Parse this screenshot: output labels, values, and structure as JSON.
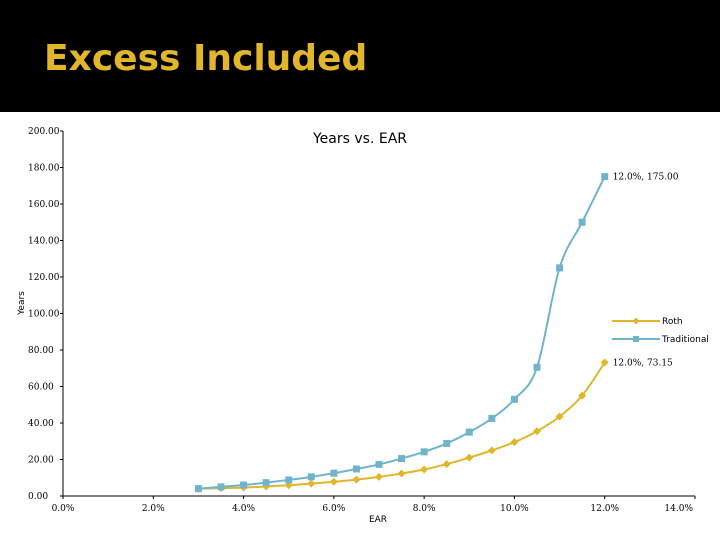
{
  "slide": {
    "title": "Excess Included"
  },
  "colors": {
    "roth": "#e2b62b",
    "traditional": "#6fb4cc",
    "title": "#e2b62b",
    "band": "#000000"
  },
  "chart_data": {
    "type": "line",
    "title": "Years vs. EAR",
    "xlabel": "EAR",
    "ylabel": "Years",
    "xlim": [
      0,
      14
    ],
    "ylim": [
      0,
      200
    ],
    "x_ticks": [
      "0.0%",
      "2.0%",
      "4.0%",
      "6.0%",
      "8.0%",
      "10.0%",
      "12.0%",
      "14.0%"
    ],
    "y_ticks": [
      "0.00",
      "20.00",
      "40.00",
      "60.00",
      "80.00",
      "100.00",
      "120.00",
      "140.00",
      "160.00",
      "180.00",
      "200.00"
    ],
    "grid": false,
    "legend": "right",
    "x": [
      3.0,
      3.5,
      4.0,
      4.5,
      5.0,
      5.5,
      6.0,
      6.5,
      7.0,
      7.5,
      8.0,
      8.5,
      9.0,
      9.5,
      10.0,
      10.5,
      11.0,
      11.5,
      12.0
    ],
    "series": [
      {
        "name": "Roth",
        "marker": "diamond",
        "values": [
          4.0,
          4.3,
          4.6,
          5.2,
          5.9,
          6.8,
          7.8,
          9.0,
          10.5,
          12.3,
          14.5,
          17.5,
          21.0,
          25.0,
          29.5,
          35.5,
          43.5,
          55.0,
          73.15
        ]
      },
      {
        "name": "Traditional",
        "marker": "square",
        "values": [
          4.0,
          5.0,
          6.0,
          7.3,
          8.8,
          10.5,
          12.5,
          14.8,
          17.3,
          20.5,
          24.2,
          28.8,
          35.0,
          42.5,
          53.0,
          70.5,
          125.0,
          150.0,
          175.0
        ]
      }
    ],
    "annotations": [
      {
        "series": "Traditional",
        "text": "12.0%, 175.00"
      },
      {
        "series": "Roth",
        "text": "12.0%, 73.15"
      }
    ]
  }
}
